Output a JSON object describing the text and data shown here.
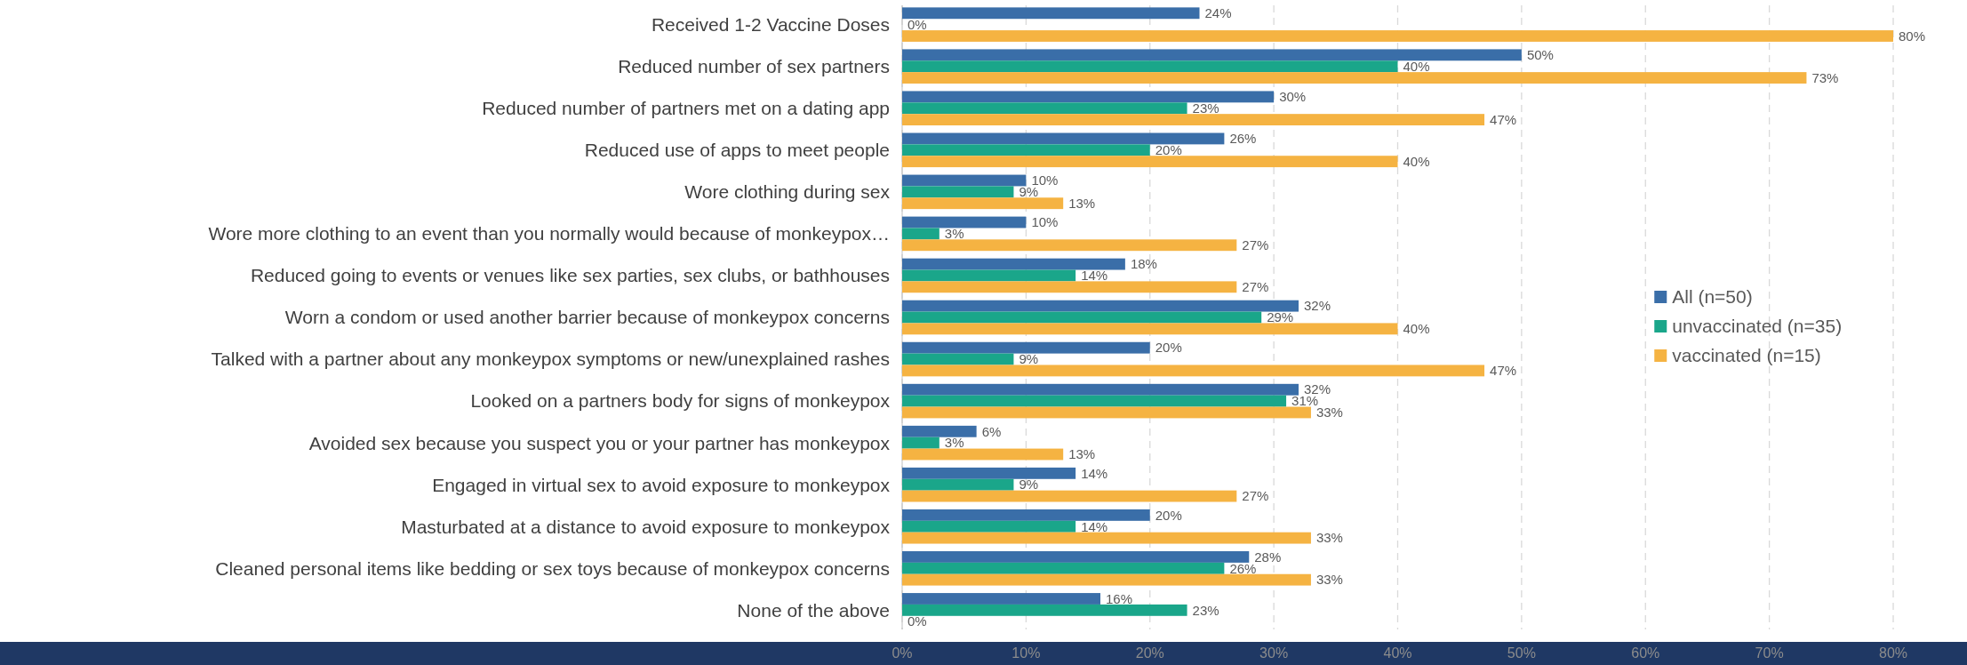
{
  "chart_data": {
    "type": "bar",
    "orientation": "horizontal",
    "categories": [
      "Received 1-2 Vaccine Doses",
      "Reduced number of sex partners",
      "Reduced number of partners met on a dating app",
      "Reduced use of apps to meet people",
      "Wore clothing during sex",
      "Wore more clothing to an event than you normally would because of monkeypox…",
      "Reduced going to events or venues like sex parties, sex clubs, or bathhouses",
      "Worn a condom or used another barrier because of monkeypox concerns",
      "Talked with a partner about any monkeypox symptoms or new/unexplained rashes",
      "Looked on a partners body for signs of monkeypox",
      "Avoided sex because you suspect you or your partner has monkeypox",
      "Engaged in virtual sex to avoid exposure to monkeypox",
      "Masturbated at a distance to avoid exposure to monkeypox",
      "Cleaned personal items like bedding or sex toys because of monkeypox concerns",
      "None of the above"
    ],
    "series": [
      {
        "name": "All (n=50)",
        "color": "#3a6ea8",
        "values": [
          24,
          50,
          30,
          26,
          10,
          10,
          18,
          32,
          20,
          32,
          6,
          14,
          20,
          28,
          16
        ],
        "value_labels": [
          "24%",
          "50%",
          "30%",
          "26%",
          "10%",
          "10%",
          "18%",
          "32%",
          "20%",
          "32%",
          "6%",
          "14%",
          "20%",
          "28%",
          "16%"
        ]
      },
      {
        "name": "unvaccinated (n=35)",
        "color": "#1aa68a",
        "values": [
          0,
          40,
          23,
          20,
          9,
          3,
          14,
          29,
          9,
          31,
          3,
          9,
          14,
          26,
          23
        ],
        "value_labels": [
          "0%",
          "40%",
          "23%",
          "20%",
          "9%",
          "3%",
          "14%",
          "29%",
          "9%",
          "31%",
          "3%",
          "9%",
          "14%",
          "26%",
          "23%"
        ]
      },
      {
        "name": "vaccinated (n=15)",
        "color": "#f5b342",
        "values": [
          80,
          73,
          47,
          40,
          13,
          27,
          27,
          40,
          47,
          33,
          13,
          27,
          33,
          33,
          0
        ],
        "value_labels": [
          "80%",
          "73%",
          "47%",
          "40%",
          "13%",
          "27%",
          "27%",
          "40%",
          "47%",
          "33%",
          "13%",
          "27%",
          "33%",
          "33%",
          "0%"
        ]
      }
    ],
    "xlim": [
      0,
      80
    ],
    "xticks": [
      {
        "value": 0,
        "label": "0%"
      },
      {
        "value": 10,
        "label": "10%"
      },
      {
        "value": 20,
        "label": "20%"
      },
      {
        "value": 30,
        "label": "30%"
      },
      {
        "value": 40,
        "label": "40%"
      },
      {
        "value": 50,
        "label": "50%"
      },
      {
        "value": 60,
        "label": "60%"
      },
      {
        "value": 70,
        "label": "70%"
      },
      {
        "value": 80,
        "label": "80%"
      }
    ],
    "grid": "x",
    "legend": "right"
  }
}
